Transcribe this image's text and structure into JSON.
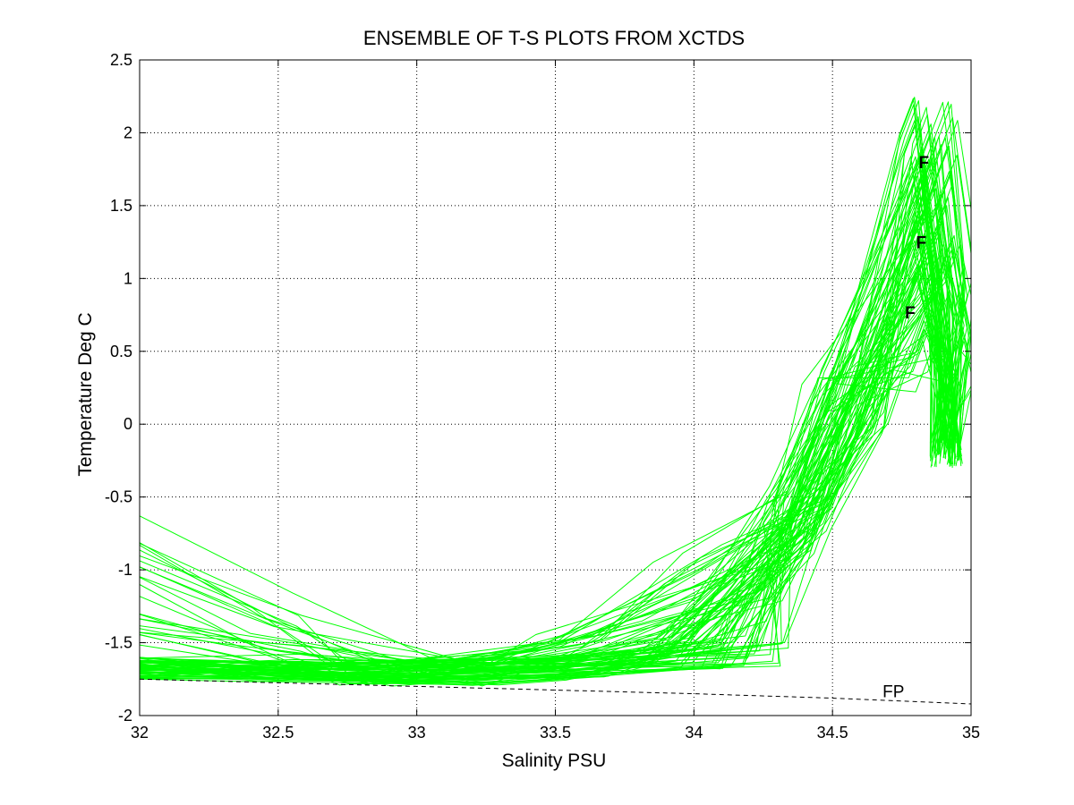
{
  "chart_data": {
    "type": "line",
    "title": "ENSEMBLE OF T-S PLOTS FROM XCTDS",
    "xlabel": "Salinity PSU",
    "ylabel": "Temperature Deg C",
    "xlim": [
      32,
      35
    ],
    "ylim": [
      -2,
      2.5
    ],
    "xticks": [
      32,
      32.5,
      33,
      33.5,
      34,
      34.5,
      35
    ],
    "xtick_labels": [
      "32",
      "32.5",
      "33",
      "33.5",
      "34",
      "34.5",
      "35"
    ],
    "yticks": [
      -2,
      -1.5,
      -1,
      -0.5,
      0,
      0.5,
      1,
      1.5,
      2,
      2.5
    ],
    "ytick_labels": [
      "-2",
      "-1.5",
      "-1",
      "-0.5",
      "0",
      "0.5",
      "1",
      "1.5",
      "2",
      "2.5"
    ],
    "grid": true,
    "colors": {
      "profiles": "#00ff00",
      "freezing_point": "#000000"
    },
    "freezing_point_line": {
      "style": "dashed",
      "x": [
        32,
        33,
        34,
        34.5,
        35
      ],
      "y": [
        -1.75,
        -1.8,
        -1.85,
        -1.88,
        -1.92
      ]
    },
    "profile_template": {
      "x": [
        32,
        32.5,
        33,
        33.5,
        34,
        34.2,
        34.4,
        34.5,
        34.7,
        34.8,
        34.85,
        34.9
      ],
      "y": [
        -1.7,
        -1.73,
        -1.75,
        -1.72,
        -1.55,
        -1.2,
        -0.4,
        0.3,
        1.0,
        1.5,
        1.4,
        0.8
      ]
    },
    "annotations": [
      {
        "text": "F",
        "x": 34.83,
        "y": 1.8,
        "bold": true
      },
      {
        "text": "F",
        "x": 34.82,
        "y": 1.25,
        "bold": true
      },
      {
        "text": "F",
        "x": 34.78,
        "y": 0.77,
        "bold": true
      },
      {
        "text": "FP",
        "x": 34.72,
        "y": -1.83,
        "bold": false
      }
    ]
  }
}
